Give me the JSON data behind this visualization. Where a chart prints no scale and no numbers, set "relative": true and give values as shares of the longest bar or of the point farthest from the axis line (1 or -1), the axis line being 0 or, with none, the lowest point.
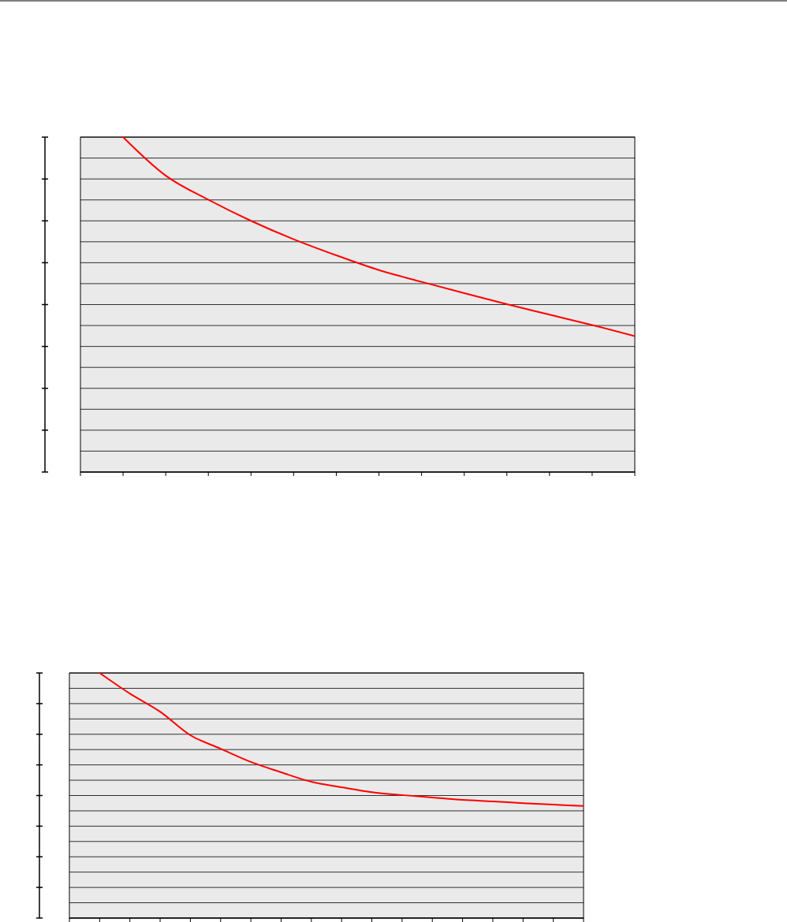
{
  "chart_data": [
    {
      "type": "line",
      "relative": true,
      "grid": true,
      "categories": [
        null,
        null,
        null,
        null,
        null,
        null,
        null,
        null,
        null,
        null,
        null,
        null,
        null,
        null
      ],
      "series": [
        {
          "color": "#ff0000",
          "values": [
            null,
            1,
            0.885,
            0.813,
            0.75,
            0.695,
            0.647,
            0.603,
            0.568,
            0.534,
            0.501,
            0.47,
            0.439,
            0.406
          ]
        }
      ]
    },
    {
      "type": "line",
      "relative": true,
      "grid": true,
      "categories": [
        null,
        null,
        null,
        null,
        null,
        null,
        null,
        null,
        null,
        null,
        null,
        null,
        null,
        null,
        null,
        null,
        null,
        null
      ],
      "series": [
        {
          "color": "#ff0000",
          "values": [
            null,
            1,
            0.916,
            0.842,
            0.746,
            0.691,
            0.637,
            0.595,
            0.556,
            0.534,
            0.514,
            0.502,
            0.492,
            0.482,
            0.476,
            0.469,
            0.463,
            0.457
          ]
        }
      ]
    }
  ]
}
